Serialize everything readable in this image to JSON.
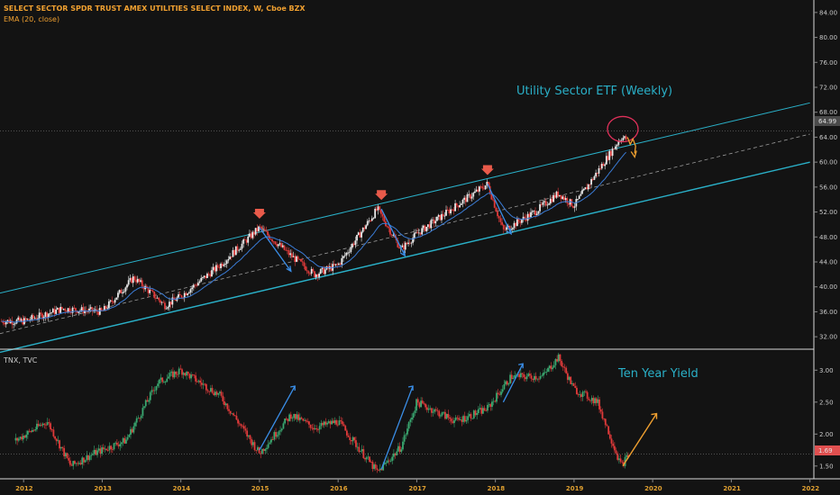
{
  "chart_data": [
    {
      "type": "candlestick",
      "title": "SELECT SECTOR SPDR TRUST AMEX UTILITIES SELECT INDEX, W, Cboe BZX",
      "subtitle": "EMA (20, close)",
      "annotation": "Utility Sector ETF (Weekly)",
      "ylim": [
        30,
        86
      ],
      "yticks": [
        "84.00",
        "80.00",
        "76.00",
        "72.00",
        "68.00",
        "64.00",
        "60.00",
        "56.00",
        "52.00",
        "48.00",
        "44.00",
        "40.00",
        "36.00",
        "32.00"
      ],
      "last_price": "64.99",
      "series": [
        {
          "name": "",
          "x": [
            2012.0,
            2012.5,
            2013.0,
            2013.4,
            2013.8,
            2014.0,
            2014.5,
            2015.0,
            2015.4,
            2015.7,
            2016.0,
            2016.5,
            2016.8,
            2017.0,
            2017.5,
            2017.9,
            2018.1,
            2018.5,
            2018.8,
            2019.0,
            2019.3,
            2019.6,
            2019.7
          ],
          "y": [
            34.5,
            36.5,
            36.0,
            41.5,
            37.0,
            38.5,
            43.5,
            49.5,
            45.0,
            42.0,
            43.5,
            52.5,
            46.0,
            48.5,
            53.0,
            56.5,
            49.0,
            52.0,
            55.0,
            53.0,
            58.5,
            64.0,
            63.5
          ]
        }
      ],
      "channel": {
        "upper": {
          "x": [
            2011.7,
            2022.0
          ],
          "y": [
            39.0,
            69.5
          ]
        },
        "middle": {
          "x": [
            2011.7,
            2022.0
          ],
          "y": [
            32.5,
            64.5
          ]
        },
        "lower": {
          "x": [
            2011.7,
            2022.0
          ],
          "y": [
            29.5,
            60.0
          ]
        }
      },
      "markers": [
        {
          "x": 2015.0,
          "y": 51.5
        },
        {
          "x": 2016.55,
          "y": 54.5
        },
        {
          "x": 2017.9,
          "y": 58.5
        }
      ]
    },
    {
      "type": "candlestick",
      "title": "TNX, TVC",
      "annotation": "Ten Year Yield",
      "ylim": [
        1.3,
        3.3
      ],
      "yticks": [
        "3.00",
        "2.50",
        "2.00",
        "1.50"
      ],
      "last_price": "1.69",
      "series": [
        {
          "name": "",
          "x": [
            2011.9,
            2012.3,
            2012.6,
            2012.9,
            2013.3,
            2013.7,
            2014.0,
            2014.5,
            2015.0,
            2015.4,
            2015.7,
            2016.0,
            2016.5,
            2016.8,
            2017.0,
            2017.5,
            2017.9,
            2018.2,
            2018.6,
            2018.8,
            2019.0,
            2019.3,
            2019.6,
            2019.7
          ],
          "y": [
            1.9,
            2.2,
            1.5,
            1.7,
            1.9,
            2.8,
            3.0,
            2.6,
            1.7,
            2.3,
            2.1,
            2.2,
            1.4,
            1.8,
            2.5,
            2.2,
            2.4,
            2.9,
            2.9,
            3.2,
            2.7,
            2.5,
            1.5,
            1.69
          ]
        }
      ]
    }
  ],
  "xaxis": {
    "ticks": [
      "2012",
      "2013",
      "2014",
      "2015",
      "2016",
      "2017",
      "2018",
      "2019",
      "2020",
      "2021",
      "2022"
    ]
  }
}
